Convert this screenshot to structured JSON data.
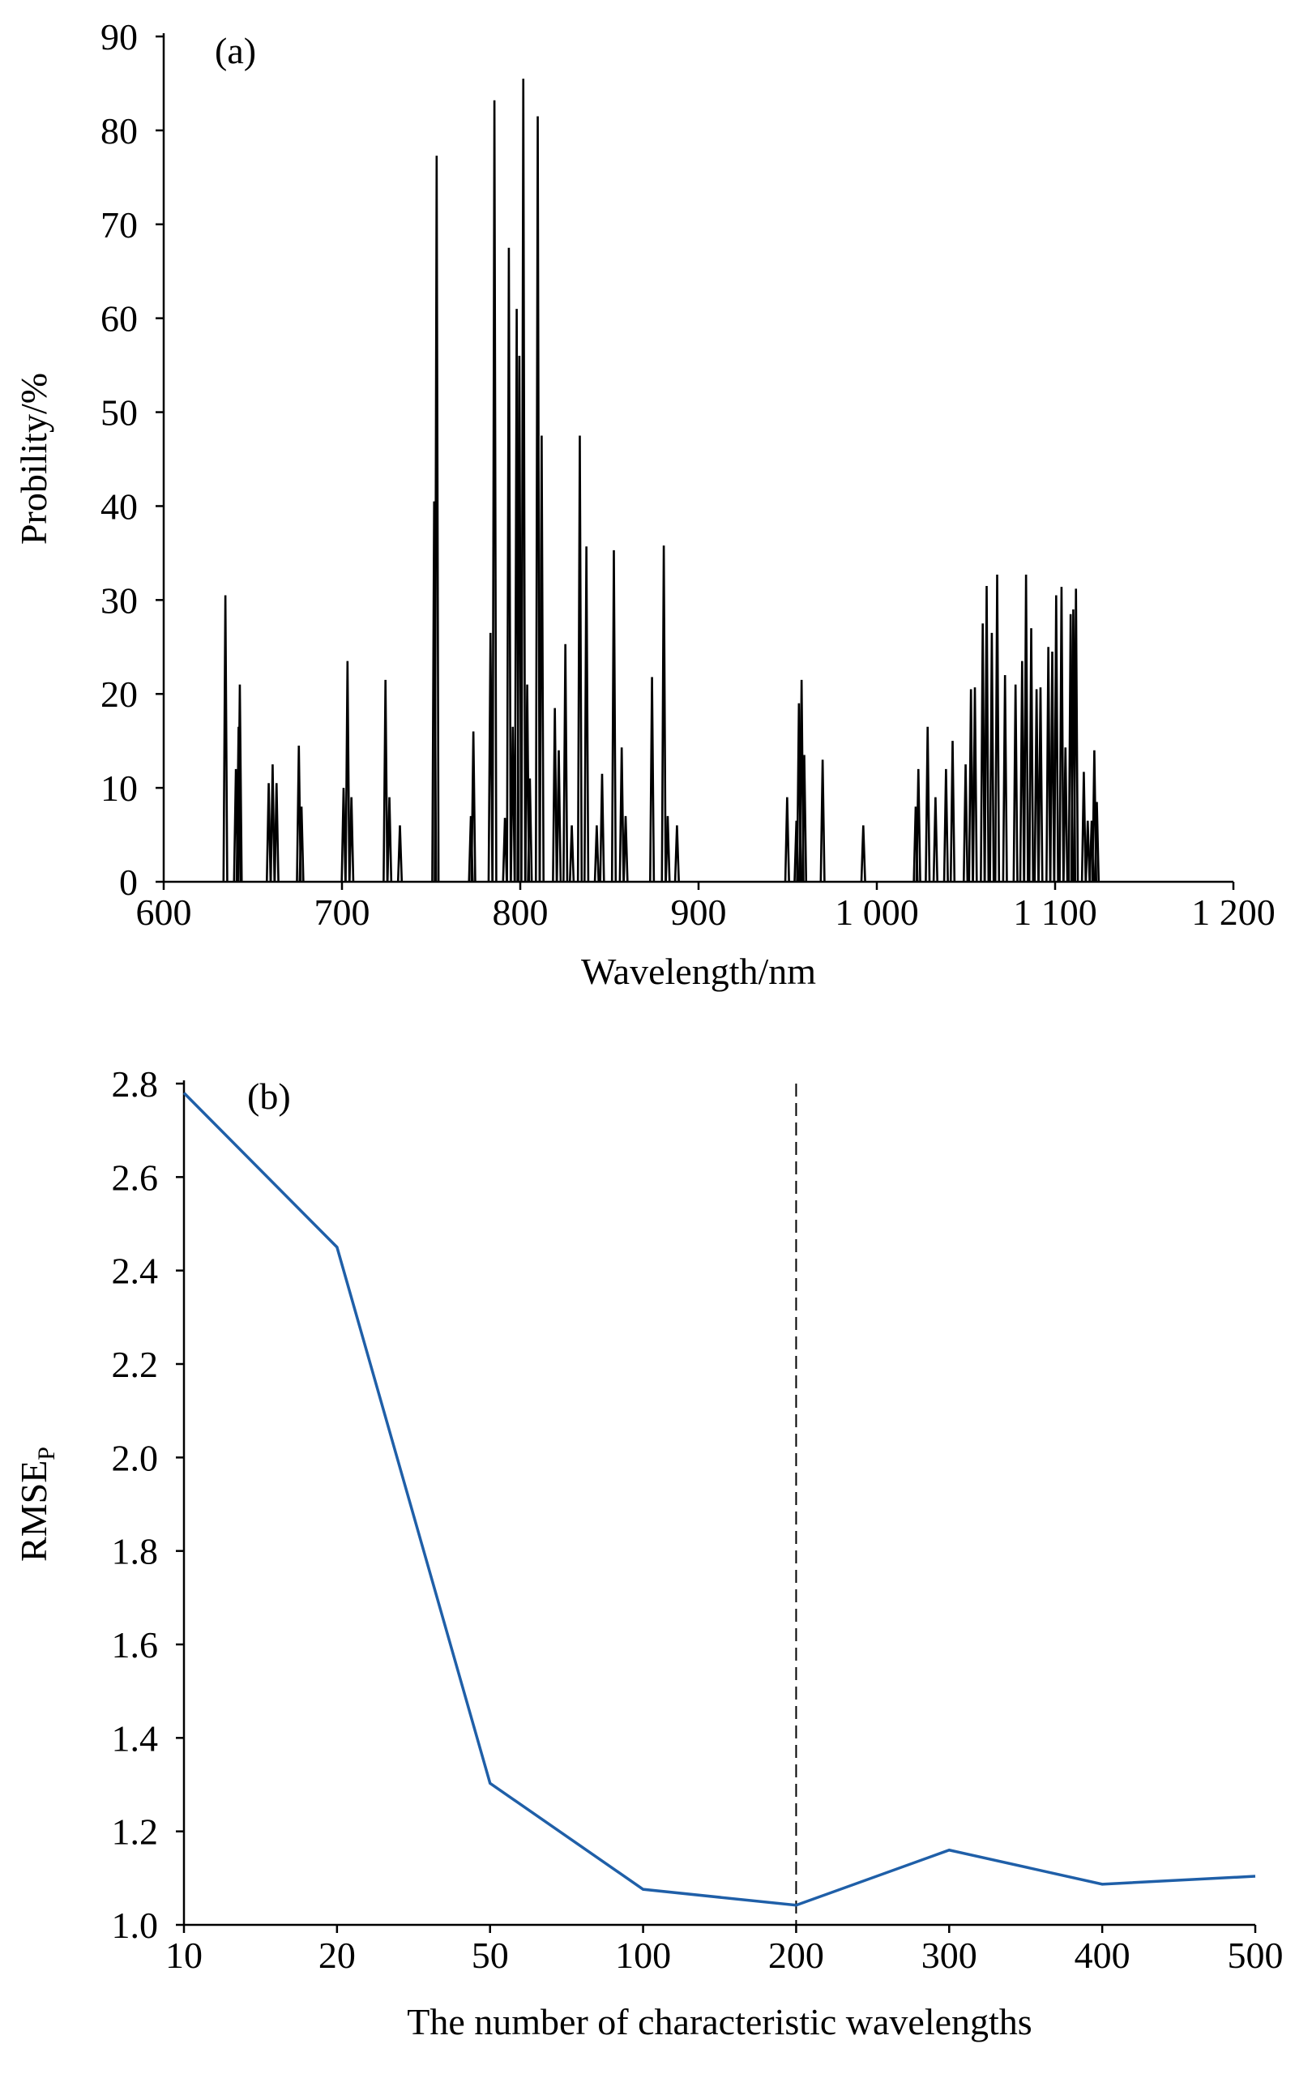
{
  "chart_data": [
    {
      "type": "stem",
      "annotation": "(a)",
      "x_label": "Wavelength/nm",
      "y_label": "Probility/%",
      "color": "#000000",
      "xlim": [
        600,
        1200
      ],
      "xticks": [
        600,
        700,
        800,
        900,
        {
          "value": 1000,
          "label": "1 000"
        },
        {
          "value": 1100,
          "label": "1 100"
        },
        {
          "value": 1200,
          "label": "1 200"
        }
      ],
      "ylim": [
        0,
        90
      ],
      "yticks": [
        0,
        10,
        20,
        30,
        40,
        50,
        60,
        70,
        80,
        90
      ],
      "x": [
        634.6,
        640.5,
        642.0,
        642.7,
        658.9,
        661.1,
        663.3,
        675.8,
        677.3,
        700.9,
        703.1,
        705.3,
        724.4,
        726.6,
        732.5,
        751.7,
        753.1,
        772.3,
        773.7,
        783.3,
        785.5,
        791.4,
        793.6,
        795.8,
        798.0,
        799.5,
        801.7,
        803.9,
        805.4,
        809.8,
        812.0,
        819.4,
        821.6,
        825.3,
        828.9,
        833.4,
        837.1,
        842.9,
        845.9,
        852.5,
        856.9,
        859.1,
        873.9,
        880.5,
        882.7,
        887.9,
        949.7,
        954.9,
        956.3,
        957.8,
        959.3,
        969.6,
        992.4,
        1021.8,
        1023.3,
        1028.5,
        1032.9,
        1038.8,
        1042.5,
        1049.8,
        1052.8,
        1055.0,
        1059.4,
        1061.6,
        1064.5,
        1067.5,
        1071.9,
        1077.8,
        1081.5,
        1083.7,
        1086.6,
        1089.6,
        1091.8,
        1096.2,
        1098.4,
        1100.6,
        1103.6,
        1105.8,
        1108.7,
        1110.2,
        1111.7,
        1116.1,
        1118.3,
        1120.5,
        1122.0,
        1123.4
      ],
      "values": [
        30.5,
        12,
        16.5,
        21,
        10.5,
        12.5,
        10.5,
        14.5,
        8,
        10,
        23.5,
        9,
        21.5,
        9,
        6,
        40.5,
        77.3,
        7,
        16,
        26.5,
        83.2,
        6.8,
        67.5,
        16.5,
        61,
        56,
        85.5,
        21,
        11,
        81.5,
        47.5,
        18.5,
        14,
        25.3,
        6,
        47.5,
        35.7,
        6,
        11.5,
        35.3,
        14.3,
        7,
        21.8,
        35.8,
        7,
        6,
        9,
        6.5,
        19,
        21.5,
        13.5,
        13,
        6,
        8,
        12,
        16.5,
        9,
        12,
        15,
        12.5,
        20.5,
        20.7,
        27.5,
        31.5,
        26.5,
        32.7,
        22,
        21,
        23.5,
        32.7,
        27,
        20.5,
        20.7,
        25,
        24.5,
        30.5,
        31.4,
        14.3,
        28.5,
        29,
        31.2,
        11.7,
        6.5,
        6.5,
        14,
        8.5
      ]
    },
    {
      "type": "line",
      "annotation": "(b)",
      "x_label": "The number of characteristic wavelengths",
      "y_label": "RMSE",
      "y_label_sub": "P",
      "color": "#1f5fa8",
      "categories": [
        "10",
        "20",
        "50",
        "100",
        "200",
        "300",
        "400",
        "500"
      ],
      "values": [
        2.78,
        2.45,
        1.303,
        1.076,
        1.042,
        1.16,
        1.087,
        1.104
      ],
      "vline_category": "200",
      "ylim": [
        1.0,
        2.8
      ],
      "yticks": [
        {
          "value": 1.0,
          "label": "1.0"
        },
        1.2,
        1.4,
        1.6,
        1.8,
        {
          "value": 2.0,
          "label": "2.0"
        },
        2.2,
        2.4,
        2.6,
        2.8
      ]
    }
  ]
}
